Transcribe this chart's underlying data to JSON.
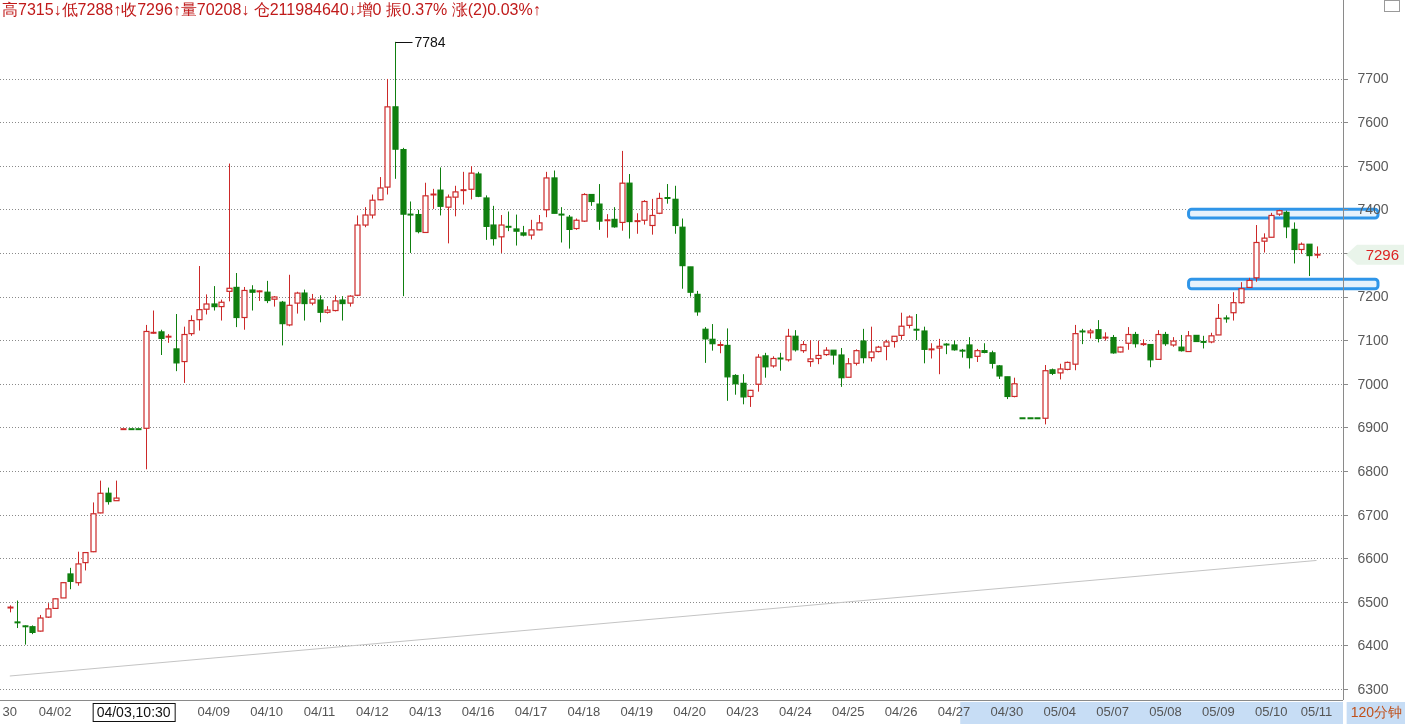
{
  "chart_data": {
    "type": "candlestick",
    "title": "高7315↓低7288↑收7296↑量70208↓ 仓211984640↓增0 振0.37% 涨(2)0.03%↑",
    "categories": [
      "30",
      null,
      null,
      null,
      null,
      null,
      "04/02",
      null,
      null,
      null,
      null,
      null,
      null,
      null,
      null,
      null,
      null,
      null,
      null,
      null,
      null,
      null,
      null,
      null,
      null,
      null,
      null,
      "04/09",
      null,
      null,
      null,
      null,
      null,
      null,
      "04/10",
      null,
      null,
      null,
      null,
      null,
      null,
      "04/11",
      null,
      null,
      null,
      null,
      null,
      null,
      "04/12",
      null,
      null,
      null,
      null,
      null,
      null,
      "04/13",
      null,
      null,
      null,
      null,
      null,
      null,
      "04/16",
      null,
      null,
      null,
      null,
      null,
      null,
      "04/17",
      null,
      null,
      null,
      null,
      null,
      null,
      "04/18",
      null,
      null,
      null,
      null,
      null,
      null,
      "04/19",
      null,
      null,
      null,
      null,
      null,
      null,
      "04/20",
      null,
      null,
      null,
      null,
      null,
      null,
      "04/23",
      null,
      null,
      null,
      null,
      null,
      null,
      "04/24",
      null,
      null,
      null,
      null,
      null,
      null,
      "04/25",
      null,
      null,
      null,
      null,
      null,
      null,
      "04/26",
      null,
      null,
      null,
      null,
      null,
      null,
      "04/27",
      null,
      null,
      null,
      null,
      null,
      null,
      "04/30",
      null,
      null,
      null,
      null,
      null,
      null,
      "05/04",
      null,
      null,
      null,
      null,
      null,
      null,
      "05/07",
      null,
      null,
      null,
      null,
      null,
      null,
      "05/08",
      null,
      null,
      null,
      null,
      null,
      null,
      "05/09",
      null,
      null,
      null,
      null,
      null,
      null,
      "05/10",
      null,
      null,
      null,
      null,
      null,
      "05/11"
    ],
    "ohlc": [
      [
        6485,
        6492,
        6476,
        6487
      ],
      [
        6453,
        6503,
        6440,
        6451
      ],
      [
        6444,
        6446,
        6402,
        6442
      ],
      [
        6443,
        6446,
        6426,
        6430
      ],
      [
        6433,
        6470,
        6432,
        6463
      ],
      [
        6465,
        6497,
        6463,
        6484
      ],
      [
        6485,
        6508,
        6485,
        6507
      ],
      [
        6509,
        6545,
        6509,
        6544
      ],
      [
        6564,
        6578,
        6529,
        6547
      ],
      [
        6544,
        6615,
        6537,
        6587
      ],
      [
        6590,
        6613,
        6572,
        6613
      ],
      [
        6615,
        6728,
        6614,
        6702
      ],
      [
        6704,
        6778,
        6703,
        6749
      ],
      [
        6749,
        6762,
        6723,
        6730
      ],
      [
        6732,
        6778,
        6732,
        6738
      ],
      [
        6896,
        6896,
        6896,
        6896
      ],
      [
        6896,
        6896,
        6896,
        6896
      ],
      [
        6896,
        6896,
        6896,
        6896
      ],
      [
        6898,
        7135,
        6804,
        7120
      ],
      [
        7116,
        7168,
        7115,
        7117
      ],
      [
        7119,
        7124,
        7066,
        7104
      ],
      [
        7106,
        7114,
        7094,
        7108
      ],
      [
        7080,
        7160,
        7029,
        7048
      ],
      [
        7051,
        7131,
        7002,
        7113
      ],
      [
        7115,
        7157,
        7110,
        7145
      ],
      [
        7147,
        7270,
        7122,
        7170
      ],
      [
        7171,
        7205,
        7159,
        7183
      ],
      [
        7183,
        7224,
        7168,
        7177
      ],
      [
        7177,
        7193,
        7145,
        7187
      ],
      [
        7212,
        7505,
        7189,
        7219
      ],
      [
        7221,
        7254,
        7130,
        7152
      ],
      [
        7152,
        7222,
        7124,
        7214
      ],
      [
        7215,
        7226,
        7168,
        7210
      ],
      [
        7211,
        7214,
        7190,
        7212
      ],
      [
        7210,
        7236,
        7185,
        7191
      ],
      [
        7194,
        7201,
        7177,
        7199
      ],
      [
        7187,
        7190,
        7088,
        7138
      ],
      [
        7135,
        7250,
        7132,
        7180
      ],
      [
        7185,
        7211,
        7161,
        7208
      ],
      [
        7208,
        7216,
        7145,
        7184
      ],
      [
        7185,
        7206,
        7180,
        7194
      ],
      [
        7192,
        7203,
        7141,
        7164
      ],
      [
        7164,
        7178,
        7161,
        7169
      ],
      [
        7168,
        7203,
        7166,
        7190
      ],
      [
        7192,
        7201,
        7145,
        7184
      ],
      [
        7185,
        7203,
        7177,
        7201
      ],
      [
        7203,
        7386,
        7201,
        7364
      ],
      [
        7364,
        7405,
        7359,
        7387
      ],
      [
        7387,
        7434,
        7379,
        7421
      ],
      [
        7422,
        7474,
        7421,
        7449
      ],
      [
        7451,
        7699,
        7434,
        7635
      ],
      [
        7635,
        7784,
        7470,
        7538
      ],
      [
        7537,
        7541,
        7201,
        7389
      ],
      [
        7388,
        7418,
        7300,
        7386
      ],
      [
        7388,
        7399,
        7345,
        7349
      ],
      [
        7347,
        7461,
        7346,
        7431
      ],
      [
        7432,
        7447,
        7401,
        7434
      ],
      [
        7444,
        7496,
        7386,
        7407
      ],
      [
        7405,
        7434,
        7322,
        7428
      ],
      [
        7428,
        7454,
        7384,
        7440
      ],
      [
        7443,
        7486,
        7411,
        7444
      ],
      [
        7446,
        7499,
        7423,
        7483
      ],
      [
        7481,
        7486,
        7428,
        7430
      ],
      [
        7426,
        7432,
        7330,
        7361
      ],
      [
        7364,
        7408,
        7317,
        7333
      ],
      [
        7337,
        7387,
        7300,
        7364
      ],
      [
        7360,
        7395,
        7350,
        7359
      ],
      [
        7355,
        7388,
        7317,
        7350
      ],
      [
        7346,
        7362,
        7338,
        7341
      ],
      [
        7341,
        7376,
        7331,
        7353
      ],
      [
        7353,
        7387,
        7352,
        7369
      ],
      [
        7399,
        7486,
        7382,
        7472
      ],
      [
        7472,
        7489,
        7391,
        7391
      ],
      [
        7388,
        7405,
        7324,
        7387
      ],
      [
        7382,
        7387,
        7310,
        7354
      ],
      [
        7356,
        7379,
        7353,
        7375
      ],
      [
        7373,
        7437,
        7371,
        7434
      ],
      [
        7434,
        7434,
        7408,
        7418
      ],
      [
        7412,
        7458,
        7353,
        7373
      ],
      [
        7374,
        7389,
        7335,
        7375
      ],
      [
        7377,
        7405,
        7358,
        7360
      ],
      [
        7370,
        7534,
        7351,
        7460
      ],
      [
        7460,
        7481,
        7333,
        7372
      ],
      [
        7372,
        7391,
        7344,
        7373
      ],
      [
        7375,
        7421,
        7365,
        7418
      ],
      [
        7363,
        7424,
        7342,
        7386
      ],
      [
        7391,
        7438,
        7389,
        7425
      ],
      [
        7426,
        7458,
        7413,
        7425
      ],
      [
        7423,
        7454,
        7344,
        7363
      ],
      [
        7359,
        7379,
        7218,
        7271
      ],
      [
        7268,
        7268,
        7200,
        7210
      ],
      [
        7205,
        7213,
        7156,
        7165
      ],
      [
        7125,
        7130,
        7048,
        7103
      ],
      [
        7102,
        7137,
        7076,
        7092
      ],
      [
        7088,
        7097,
        7070,
        7089
      ],
      [
        7088,
        7127,
        6961,
        7016
      ],
      [
        7019,
        7022,
        6975,
        7000
      ],
      [
        7001,
        7022,
        6953,
        6970
      ],
      [
        6971,
        6986,
        6947,
        6985
      ],
      [
        6999,
        7068,
        6982,
        7061
      ],
      [
        7064,
        7071,
        7014,
        7039
      ],
      [
        7041,
        7063,
        7037,
        7058
      ],
      [
        7058,
        7071,
        7030,
        7055
      ],
      [
        7055,
        7126,
        7051,
        7109
      ],
      [
        7109,
        7123,
        7074,
        7078
      ],
      [
        7076,
        7098,
        7071,
        7090
      ],
      [
        7051,
        7100,
        7039,
        7057
      ],
      [
        7058,
        7099,
        7045,
        7065
      ],
      [
        7067,
        7084,
        7064,
        7077
      ],
      [
        7077,
        7077,
        7044,
        7066
      ],
      [
        7066,
        7082,
        6993,
        7014
      ],
      [
        7015,
        7059,
        7015,
        7046
      ],
      [
        7047,
        7079,
        7042,
        7076
      ],
      [
        7098,
        7126,
        7047,
        7060
      ],
      [
        7060,
        7131,
        7051,
        7073
      ],
      [
        7074,
        7087,
        7072,
        7084
      ],
      [
        7086,
        7101,
        7054,
        7096
      ],
      [
        7097,
        7109,
        7083,
        7109
      ],
      [
        7111,
        7163,
        7101,
        7132
      ],
      [
        7134,
        7157,
        7127,
        7153
      ],
      [
        7124,
        7160,
        7100,
        7123
      ],
      [
        7121,
        7131,
        7047,
        7079
      ],
      [
        7078,
        7093,
        7058,
        7079
      ],
      [
        7082,
        7103,
        7022,
        7086
      ],
      [
        7090,
        7093,
        7068,
        7089
      ],
      [
        7089,
        7099,
        7076,
        7078
      ],
      [
        7076,
        7080,
        7060,
        7075
      ],
      [
        7089,
        7107,
        7035,
        7060
      ],
      [
        7063,
        7080,
        7050,
        7076
      ],
      [
        7076,
        7093,
        7070,
        7072
      ],
      [
        7071,
        7076,
        7035,
        7047
      ],
      [
        7041,
        7043,
        7011,
        7018
      ],
      [
        7016,
        7016,
        6965,
        6971
      ],
      [
        6971,
        7014,
        6969,
        7000
      ],
      [
        6921,
        6921,
        6921,
        6921
      ],
      [
        6921,
        6921,
        6921,
        6921
      ],
      [
        6921,
        6921,
        6921,
        6921
      ],
      [
        6921,
        7043,
        6907,
        7030
      ],
      [
        7032,
        7035,
        7020,
        7024
      ],
      [
        7025,
        7046,
        7010,
        7034
      ],
      [
        7033,
        7051,
        7031,
        7049
      ],
      [
        7045,
        7135,
        7031,
        7115
      ],
      [
        7120,
        7126,
        7091,
        7119
      ],
      [
        7117,
        7126,
        7104,
        7121
      ],
      [
        7124,
        7146,
        7095,
        7104
      ],
      [
        7105,
        7118,
        7099,
        7106
      ],
      [
        7106,
        7112,
        7069,
        7071
      ],
      [
        7073,
        7085,
        7072,
        7084
      ],
      [
        7093,
        7130,
        7078,
        7113
      ],
      [
        7113,
        7119,
        7083,
        7092
      ],
      [
        7090,
        7102,
        7087,
        7091
      ],
      [
        7090,
        7090,
        7038,
        7055
      ],
      [
        7056,
        7123,
        7056,
        7113
      ],
      [
        7113,
        7119,
        7087,
        7092
      ],
      [
        7089,
        7107,
        7085,
        7098
      ],
      [
        7084,
        7112,
        7074,
        7076
      ],
      [
        7074,
        7121,
        7074,
        7110
      ],
      [
        7111,
        7111,
        7097,
        7097
      ],
      [
        7096,
        7110,
        7081,
        7095
      ],
      [
        7096,
        7117,
        7093,
        7110
      ],
      [
        7112,
        7183,
        7112,
        7150
      ],
      [
        7150,
        7157,
        7140,
        7149
      ],
      [
        7163,
        7210,
        7145,
        7186
      ],
      [
        7186,
        7233,
        7184,
        7218
      ],
      [
        7221,
        7243,
        7221,
        7237
      ],
      [
        7243,
        7364,
        7234,
        7324
      ],
      [
        7327,
        7345,
        7301,
        7334
      ],
      [
        7336,
        7392,
        7336,
        7386
      ],
      [
        7389,
        7399,
        7385,
        7397
      ],
      [
        7393,
        7397,
        7334,
        7360
      ],
      [
        7354,
        7370,
        7276,
        7308
      ],
      [
        7308,
        7324,
        7298,
        7320
      ],
      [
        7320,
        7320,
        7247,
        7294
      ],
      [
        7294,
        7315,
        7288,
        7296
      ]
    ],
    "colors": [
      "#cc2929",
      "#0f7f0f",
      "#0f7f0f",
      "#0f7f0f",
      "#cc2929",
      "#cc2929",
      "#cc2929",
      "#cc2929",
      "#0f7f0f",
      "#cc2929",
      "#cc2929",
      "#cc2929",
      "#cc2929",
      "#0f7f0f",
      "#cc2929",
      "#cc2929",
      "#0f7f0f",
      "#0f7f0f",
      "#cc2929",
      "#cc2929",
      "#0f7f0f",
      "#cc2929",
      "#0f7f0f",
      "#cc2929",
      "#cc2929",
      "#cc2929",
      "#cc2929",
      "#0f7f0f",
      "#cc2929",
      "#cc2929",
      "#0f7f0f",
      "#cc2929",
      "#0f7f0f",
      "#cc2929",
      "#0f7f0f",
      "#cc2929",
      "#0f7f0f",
      "#cc2929",
      "#cc2929",
      "#0f7f0f",
      "#cc2929",
      "#0f7f0f",
      "#cc2929",
      "#cc2929",
      "#0f7f0f",
      "#cc2929",
      "#cc2929",
      "#cc2929",
      "#cc2929",
      "#cc2929",
      "#cc2929",
      "#0f7f0f",
      "#0f7f0f",
      "#0f7f0f",
      "#0f7f0f",
      "#cc2929",
      "#cc2929",
      "#0f7f0f",
      "#cc2929",
      "#cc2929",
      "#cc2929",
      "#cc2929",
      "#0f7f0f",
      "#0f7f0f",
      "#0f7f0f",
      "#cc2929",
      "#0f7f0f",
      "#0f7f0f",
      "#0f7f0f",
      "#cc2929",
      "#cc2929",
      "#cc2929",
      "#0f7f0f",
      "#0f7f0f",
      "#0f7f0f",
      "#cc2929",
      "#cc2929",
      "#0f7f0f",
      "#0f7f0f",
      "#cc2929",
      "#0f7f0f",
      "#cc2929",
      "#0f7f0f",
      "#cc2929",
      "#cc2929",
      "#cc2929",
      "#cc2929",
      "#0f7f0f",
      "#0f7f0f",
      "#0f7f0f",
      "#0f7f0f",
      "#0f7f0f",
      "#0f7f0f",
      "#0f7f0f",
      "#cc2929",
      "#0f7f0f",
      "#0f7f0f",
      "#0f7f0f",
      "#cc2929",
      "#cc2929",
      "#0f7f0f",
      "#cc2929",
      "#0f7f0f",
      "#cc2929",
      "#0f7f0f",
      "#cc2929",
      "#cc2929",
      "#cc2929",
      "#cc2929",
      "#0f7f0f",
      "#0f7f0f",
      "#cc2929",
      "#cc2929",
      "#0f7f0f",
      "#cc2929",
      "#cc2929",
      "#cc2929",
      "#cc2929",
      "#cc2929",
      "#cc2929",
      "#0f7f0f",
      "#0f7f0f",
      "#cc2929",
      "#cc2929",
      "#0f7f0f",
      "#0f7f0f",
      "#0f7f0f",
      "#0f7f0f",
      "#cc2929",
      "#0f7f0f",
      "#0f7f0f",
      "#0f7f0f",
      "#0f7f0f",
      "#cc2929",
      "#0f7f0f",
      "#0f7f0f",
      "#0f7f0f",
      "#cc2929",
      "#0f7f0f",
      "#cc2929",
      "#cc2929",
      "#cc2929",
      "#0f7f0f",
      "#cc2929",
      "#0f7f0f",
      "#cc2929",
      "#0f7f0f",
      "#cc2929",
      "#cc2929",
      "#0f7f0f",
      "#cc2929",
      "#0f7f0f",
      "#cc2929",
      "#0f7f0f",
      "#cc2929",
      "#0f7f0f",
      "#cc2929",
      "#0f7f0f",
      "#0f7f0f",
      "#cc2929",
      "#cc2929",
      "#0f7f0f",
      "#cc2929",
      "#cc2929",
      "#cc2929",
      "#cc2929",
      "#cc2929",
      "#cc2929",
      "#cc2929",
      "#0f7f0f",
      "#0f7f0f",
      "#cc2929",
      "#0f7f0f",
      "#cc2929"
    ],
    "series": [
      {
        "type": "line",
        "color": "#c4c4c4",
        "values": [
          6330,
          null,
          null,
          null,
          null,
          null,
          null,
          null,
          null,
          null,
          null,
          null,
          null,
          null,
          null,
          null,
          null,
          null,
          null,
          null,
          null,
          null,
          null,
          null,
          null,
          null,
          null,
          null,
          null,
          null,
          null,
          null,
          null,
          null,
          null,
          null,
          null,
          null,
          null,
          null,
          null,
          null,
          null,
          null,
          null,
          null,
          null,
          null,
          null,
          null,
          null,
          null,
          null,
          null,
          null,
          null,
          null,
          null,
          null,
          null,
          null,
          null,
          null,
          null,
          null,
          null,
          null,
          null,
          null,
          null,
          null,
          null,
          null,
          null,
          null,
          null,
          null,
          null,
          null,
          null,
          null,
          null,
          null,
          null,
          null,
          null,
          null,
          null,
          null,
          null,
          null,
          null,
          null,
          null,
          null,
          null,
          null,
          null,
          null,
          null,
          null,
          null,
          null,
          null,
          null,
          null,
          null,
          null,
          null,
          null,
          null,
          null,
          null,
          null,
          null,
          null,
          null,
          null,
          null,
          null,
          null,
          null,
          null,
          null,
          null,
          null,
          null,
          null,
          null,
          null,
          null,
          null,
          null,
          null,
          null,
          null,
          null,
          null,
          null,
          null,
          null,
          null,
          null,
          null,
          null,
          null,
          null,
          null,
          null,
          null,
          null,
          null,
          null,
          null,
          null,
          null,
          null,
          null,
          null,
          null,
          null,
          null,
          null,
          null,
          null,
          null,
          null,
          null,
          null,
          null,
          null,
          null,
          null,
          6595
        ]
      }
    ],
    "ylim": [
      6275,
      7880
    ],
    "yticks": [
      6300,
      6400,
      6500,
      6600,
      6700,
      6800,
      6900,
      7000,
      7100,
      7200,
      {
        "value": 7300,
        "label": null
      },
      7400,
      7500,
      7600,
      7700
    ],
    "grid": "y",
    "bands": [
      {
        "axis": "y",
        "from": 7380,
        "to": 7400,
        "color": "#2f95e8"
      },
      {
        "axis": "y",
        "from": 7218,
        "to": 7240,
        "color": "#2f95e8"
      }
    ],
    "annotations": [
      "7784",
      "7296",
      "04/03,10:30",
      "120分钟"
    ]
  }
}
